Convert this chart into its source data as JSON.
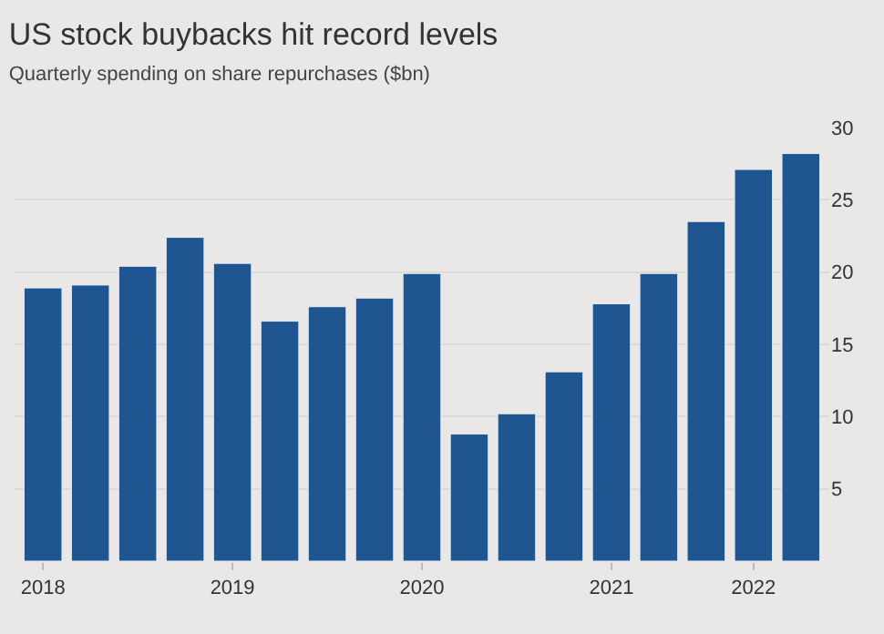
{
  "chart_data": {
    "type": "bar",
    "title": "US stock buybacks hit record levels",
    "subtitle": "Quarterly spending on share repurchases ($bn)",
    "categories": [
      "2018",
      null,
      null,
      null,
      "2019",
      null,
      null,
      null,
      "2020",
      null,
      null,
      null,
      "2021",
      null,
      null,
      "2022",
      null
    ],
    "series": [
      {
        "color": "#1f5591",
        "values": [
          18.9,
          19.1,
          20.4,
          22.4,
          20.6,
          16.6,
          17.6,
          18.2,
          19.9,
          8.8,
          10.2,
          13.1,
          17.8,
          19.9,
          23.5,
          27.1,
          28.2
        ]
      }
    ],
    "ylim": [
      0,
      30
    ],
    "yticks": [
      5,
      10,
      15,
      20,
      25,
      30
    ],
    "grid": "y",
    "legend": false
  }
}
